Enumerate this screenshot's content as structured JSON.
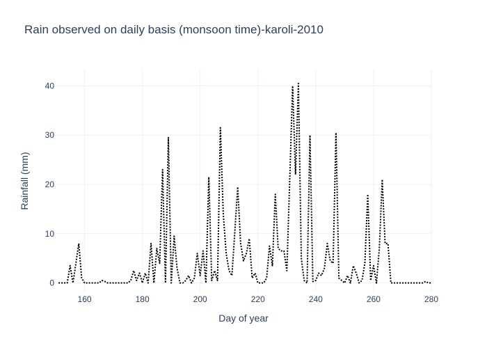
{
  "chart_data": {
    "type": "line",
    "title": "Rain observed on daily basis (monsoon time)-karoli-2010",
    "xlabel": "Day of year",
    "ylabel": "Rainfall (mm)",
    "xlim": [
      150,
      280
    ],
    "ylim": [
      -1.9,
      43.3
    ],
    "x_ticks": [
      160,
      180,
      200,
      220,
      240,
      260,
      280
    ],
    "y_ticks": [
      0,
      10,
      20,
      30,
      40
    ],
    "grid": true,
    "legend": "none",
    "series": [
      {
        "line_color": "#000000",
        "line_style": "dotted",
        "x": [
          151,
          152,
          153,
          154,
          155,
          156,
          157,
          158,
          159,
          160,
          161,
          162,
          163,
          164,
          165,
          166,
          167,
          168,
          169,
          170,
          171,
          172,
          173,
          174,
          175,
          176,
          177,
          178,
          179,
          180,
          181,
          182,
          183,
          184,
          185,
          186,
          187,
          188,
          189,
          190,
          191,
          192,
          193,
          194,
          195,
          196,
          197,
          198,
          199,
          200,
          201,
          202,
          203,
          204,
          205,
          206,
          207,
          208,
          209,
          210,
          211,
          212,
          213,
          214,
          215,
          216,
          217,
          218,
          219,
          220,
          221,
          222,
          223,
          224,
          225,
          226,
          227,
          228,
          229,
          230,
          231,
          232,
          233,
          234,
          235,
          236,
          237,
          238,
          239,
          240,
          241,
          242,
          243,
          244,
          245,
          246,
          247,
          248,
          249,
          250,
          251,
          252,
          253,
          254,
          255,
          256,
          257,
          258,
          259,
          260,
          261,
          262,
          263,
          264,
          265,
          266,
          267,
          268,
          269,
          270,
          271,
          272,
          273,
          274,
          275,
          276,
          277,
          278,
          279,
          280
        ],
        "y": [
          0,
          0,
          0,
          0,
          3.5,
          0,
          4,
          8,
          1,
          0,
          0,
          0,
          0,
          0,
          0,
          0.5,
          0.3,
          0,
          0,
          0,
          0,
          0,
          0,
          0,
          0,
          0.5,
          2.5,
          0.5,
          2,
          0,
          2,
          0,
          8,
          0,
          7,
          4,
          23,
          0,
          29.5,
          0,
          9.5,
          3,
          0,
          0,
          0.5,
          1.5,
          0,
          1,
          6,
          1.5,
          6.5,
          0,
          21.5,
          0.5,
          2.5,
          0.5,
          31.5,
          14,
          6,
          2.5,
          1.5,
          10.5,
          19.5,
          8,
          4.5,
          6,
          9,
          1,
          2,
          0,
          0,
          0,
          1,
          7.5,
          3.5,
          18,
          7,
          6.5,
          6.5,
          2.5,
          21,
          40,
          22,
          40.5,
          5,
          0.5,
          0,
          30,
          0.3,
          0.5,
          2,
          1.5,
          3,
          8,
          4.5,
          4,
          30.5,
          1,
          0.5,
          0,
          1.5,
          0,
          3.5,
          2,
          0,
          0.5,
          4,
          18,
          0.5,
          3.5,
          0,
          7,
          21,
          8,
          8,
          0,
          0,
          0,
          0,
          0,
          0,
          0,
          0,
          0,
          0,
          0,
          0,
          0.3,
          0,
          0
        ]
      }
    ]
  }
}
